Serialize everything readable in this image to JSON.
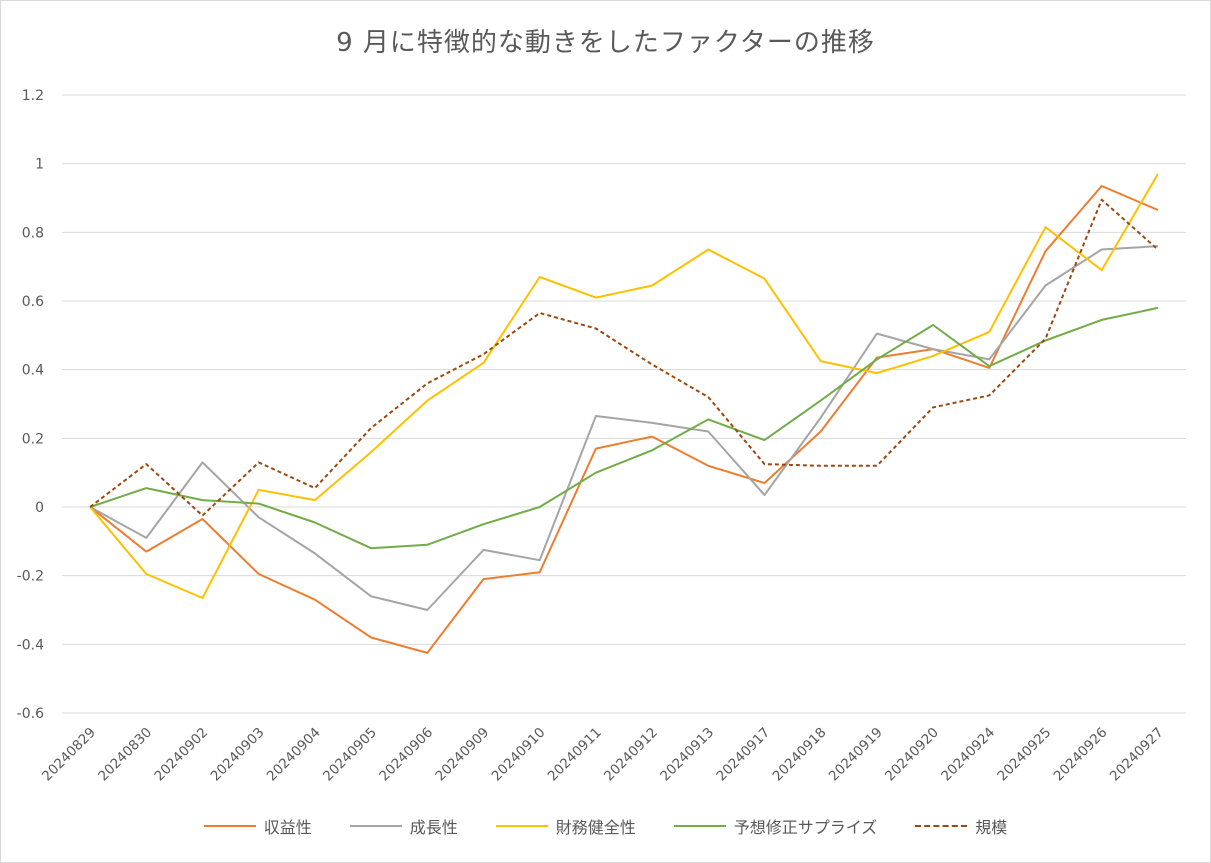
{
  "chart_data": {
    "type": "line",
    "title": "9 月に特徴的な動きをしたファクターの推移",
    "xlabel": "",
    "ylabel": "",
    "ylim": [
      -0.6,
      1.2
    ],
    "yticks": [
      "1.2",
      "1",
      "0.8",
      "0.6",
      "0.4",
      "0.2",
      "0",
      "-0.2",
      "-0.4",
      "-0.6"
    ],
    "ytick_values": [
      1.2,
      1.0,
      0.8,
      0.6,
      0.4,
      0.2,
      0,
      -0.2,
      -0.4,
      -0.6
    ],
    "grid": true,
    "legend_position": "bottom",
    "categories": [
      "20240829",
      "20240830",
      "20240902",
      "20240903",
      "20240904",
      "20240905",
      "20240906",
      "20240909",
      "20240910",
      "20240911",
      "20240912",
      "20240913",
      "20240917",
      "20240918",
      "20240919",
      "20240920",
      "20240924",
      "20240925",
      "20240926",
      "20240927"
    ],
    "series": [
      {
        "name": "収益性",
        "color": "#ED7D31",
        "dash": "solid",
        "values": [
          0,
          -0.13,
          -0.035,
          -0.195,
          -0.27,
          -0.38,
          -0.425,
          -0.21,
          -0.19,
          0.17,
          0.205,
          0.12,
          0.07,
          0.22,
          0.435,
          0.46,
          0.405,
          0.745,
          0.935,
          0.865
        ]
      },
      {
        "name": "成長性",
        "color": "#A5A5A5",
        "dash": "solid",
        "values": [
          0,
          -0.09,
          0.13,
          -0.03,
          -0.135,
          -0.26,
          -0.3,
          -0.125,
          -0.155,
          0.265,
          0.245,
          0.22,
          0.035,
          0.26,
          0.505,
          0.46,
          0.43,
          0.645,
          0.75,
          0.76
        ]
      },
      {
        "name": "財務健全性",
        "color": "#FFC000",
        "dash": "solid",
        "values": [
          0,
          -0.195,
          -0.265,
          0.05,
          0.02,
          0.16,
          0.31,
          0.42,
          0.67,
          0.61,
          0.645,
          0.75,
          0.665,
          0.425,
          0.39,
          0.44,
          0.51,
          0.815,
          0.69,
          0.97
        ]
      },
      {
        "name": "予想修正サプライズ",
        "color": "#70AD47",
        "dash": "solid",
        "values": [
          0,
          0.055,
          0.02,
          0.01,
          -0.045,
          -0.12,
          -0.11,
          -0.05,
          0,
          0.1,
          0.165,
          0.255,
          0.195,
          0.31,
          0.43,
          0.53,
          0.41,
          0.485,
          0.545,
          0.58
        ]
      },
      {
        "name": "規模",
        "color": "#9E480E",
        "dash": "dashed",
        "values": [
          0,
          0.125,
          -0.025,
          0.13,
          0.055,
          0.23,
          0.36,
          0.445,
          0.565,
          0.52,
          0.415,
          0.32,
          0.125,
          0.12,
          0.12,
          0.29,
          0.325,
          0.49,
          0.895,
          0.75
        ]
      }
    ]
  }
}
